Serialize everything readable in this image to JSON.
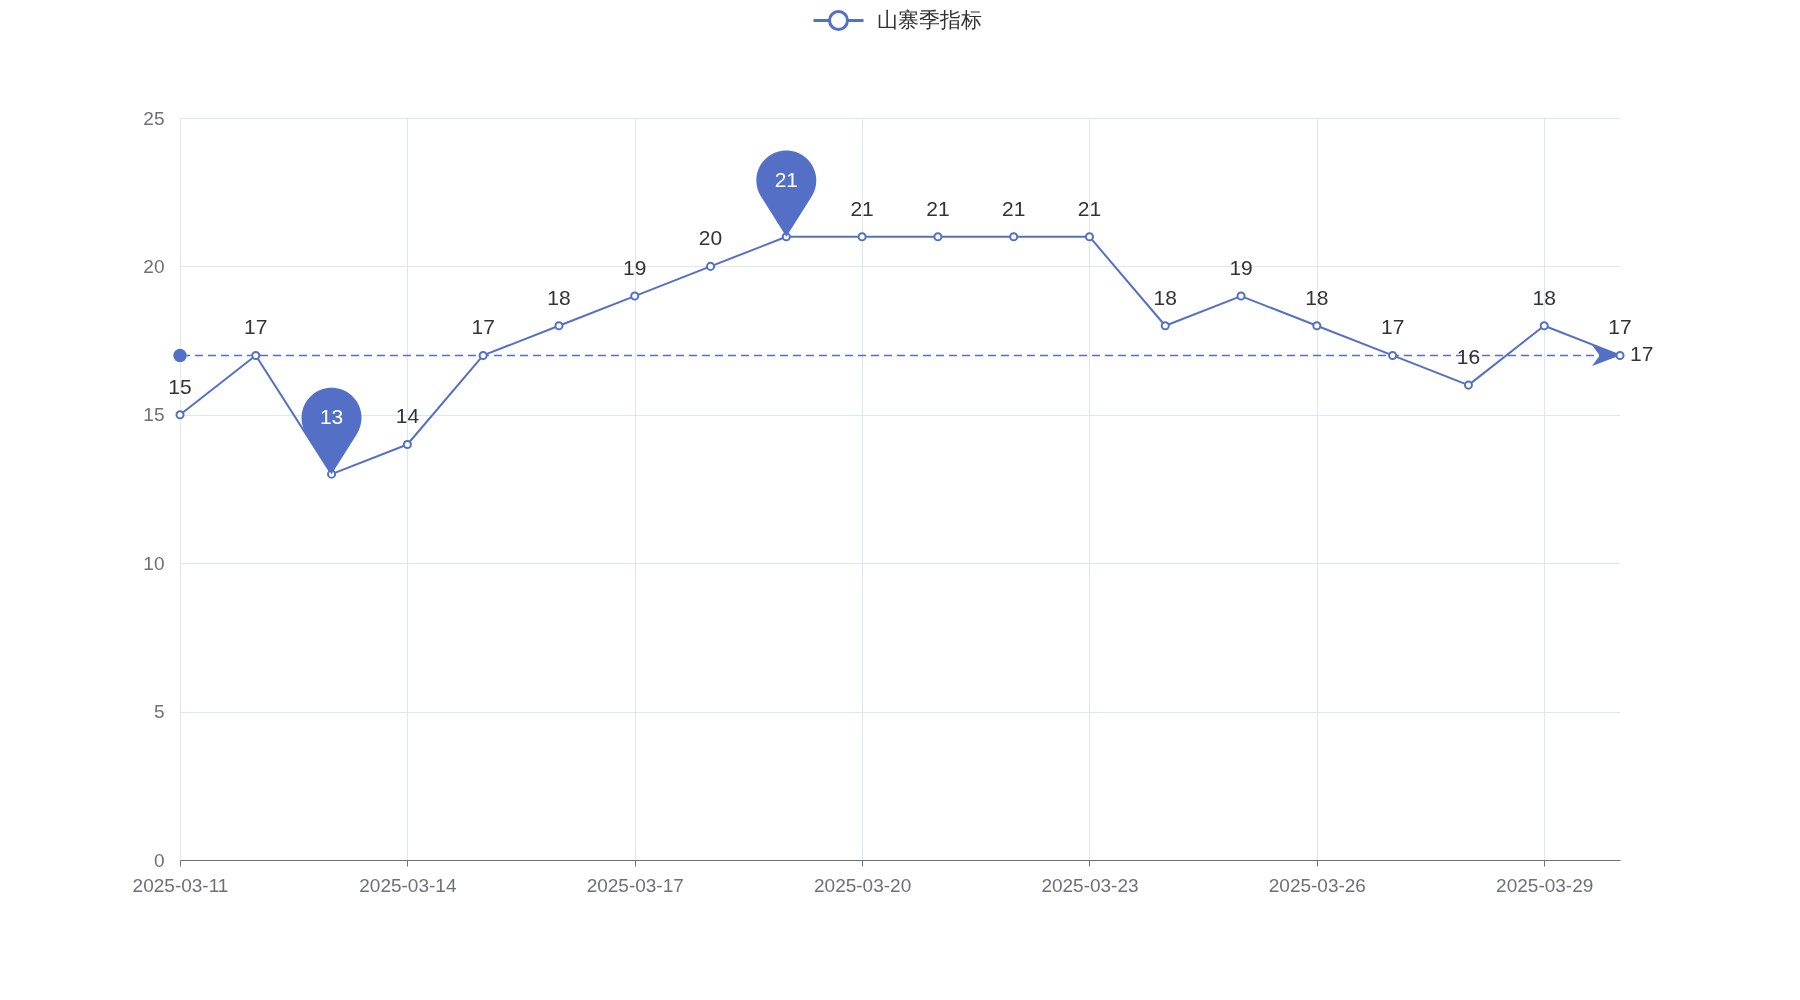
{
  "chart_data": {
    "type": "line",
    "x": [
      "2025-03-11",
      "2025-03-12",
      "2025-03-13",
      "2025-03-14",
      "2025-03-15",
      "2025-03-16",
      "2025-03-17",
      "2025-03-18",
      "2025-03-19",
      "2025-03-20",
      "2025-03-21",
      "2025-03-22",
      "2025-03-23",
      "2025-03-24",
      "2025-03-25",
      "2025-03-26",
      "2025-03-27",
      "2025-03-28",
      "2025-03-29",
      "2025-03-30"
    ],
    "series": [
      {
        "name": "山寨季指标",
        "color": "#5470c6",
        "values": [
          15,
          17,
          13,
          14,
          17,
          18,
          19,
          20,
          21,
          21,
          21,
          21,
          21,
          18,
          19,
          18,
          17,
          16,
          18,
          17
        ],
        "value_labels": [
          "15",
          "17",
          null,
          "14",
          "17",
          "18",
          "19",
          "20",
          null,
          "21",
          "21",
          "21",
          "21",
          "18",
          "19",
          "18",
          "17",
          "16",
          "18",
          "17"
        ]
      }
    ],
    "xlim": [
      "2025-03-11",
      "2025-03-30"
    ],
    "xticks": [
      "2025-03-11",
      "2025-03-14",
      "2025-03-17",
      "2025-03-20",
      "2025-03-23",
      "2025-03-26",
      "2025-03-29"
    ],
    "ylim": [
      0,
      25
    ],
    "yticks": [
      0,
      5,
      10,
      15,
      20,
      25
    ],
    "grid": true,
    "legend": "top",
    "marker": "circle",
    "ref_lines": [
      {
        "axis": "y",
        "value": 17,
        "label": "17",
        "color": "#5470c6",
        "line_style": "dashed"
      }
    ],
    "annotations": [
      {
        "text": "13",
        "x": "2025-03-13",
        "y": 13
      },
      {
        "text": "21",
        "x": "2025-03-19",
        "y": 21
      }
    ]
  }
}
